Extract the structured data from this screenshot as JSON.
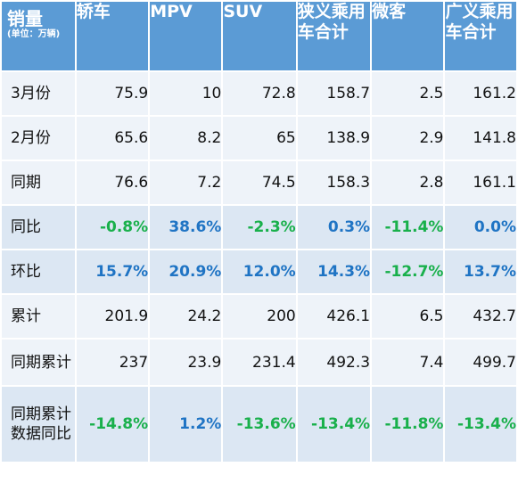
{
  "header": {
    "corner_main": "销量",
    "corner_sub": "(单位：万辆)",
    "columns": [
      "轿车",
      "MPV",
      "SUV",
      "狭义乘用车合计",
      "微客",
      "广义乘用车合计"
    ]
  },
  "rows": [
    {
      "label": "3月份",
      "values": [
        "75.9",
        "10",
        "72.8",
        "158.7",
        "2.5",
        "161.2"
      ]
    },
    {
      "label": "2月份",
      "values": [
        "65.6",
        "8.2",
        "65",
        "138.9",
        "2.9",
        "141.8"
      ]
    },
    {
      "label": "同期",
      "values": [
        "76.6",
        "7.2",
        "74.5",
        "158.3",
        "2.8",
        "161.1"
      ]
    },
    {
      "label": "同比",
      "values": [
        "-0.8%",
        "38.6%",
        "-2.3%",
        "0.3%",
        "-11.4%",
        "0.0%"
      ]
    },
    {
      "label": "环比",
      "values": [
        "15.7%",
        "20.9%",
        "12.0%",
        "14.3%",
        "-12.7%",
        "13.7%"
      ]
    },
    {
      "label": "累计",
      "values": [
        "201.9",
        "24.2",
        "200",
        "426.1",
        "6.5",
        "432.7"
      ]
    },
    {
      "label": "同期累计",
      "values": [
        "237",
        "23.9",
        "231.4",
        "492.3",
        "7.4",
        "499.7"
      ]
    },
    {
      "label": "同期累计数据同比",
      "values": [
        "-14.8%",
        "1.2%",
        "-13.6%",
        "-13.4%",
        "-11.8%",
        "-13.4%"
      ]
    }
  ],
  "colors": {
    "header_bg": "#5b9bd5",
    "row_dark": "#dce7f3",
    "row_light": "#eef3f9",
    "negative_pct": "#19b04b",
    "positive_pct": "#1f74c4"
  }
}
